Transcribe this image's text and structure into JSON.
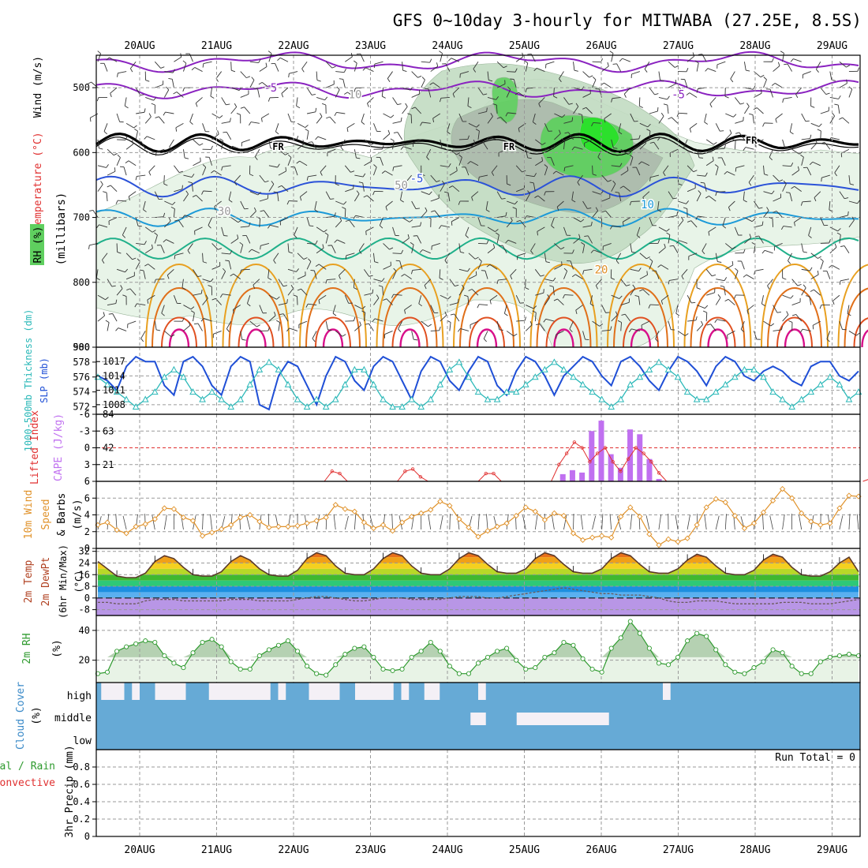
{
  "title": "GFS 0~10day 3-hourly for MITWABA (27.25E, 8.5S)",
  "dates": [
    "20AUG",
    "21AUG",
    "22AUG",
    "23AUG",
    "24AUG",
    "25AUG",
    "26AUG",
    "27AUG",
    "28AUG",
    "29AUG"
  ],
  "colors": {
    "rh_light": "#e6f3e6",
    "rh_mid": "#c2dcc2",
    "rh_gray": "#a9b7a9",
    "rh_green": "#5fcf5f",
    "rh_bright": "#2ce02c",
    "slp": "#1f4fd6",
    "thick": "#2ab8b8",
    "cape": "#c070f0",
    "li": "#e03030",
    "wind": "#e0922a",
    "rh2m": "#2e9a2e",
    "cloud": "#66aad6",
    "cloud_clear": "#f4f0f6"
  },
  "chart_data": [
    {
      "type": "contour",
      "panel": "upper-air",
      "ylabels": {
        "wind": "Wind (m/s)",
        "temp": "Temperature (°C)",
        "rh": "RH (%)",
        "pressure": "(millibars)"
      },
      "pressure_ticks": [
        500,
        600,
        700,
        800,
        900
      ],
      "ylim": [
        450,
        900
      ],
      "contour_labels": [
        {
          "text": "-5",
          "day": 1.7,
          "p": 500
        },
        {
          "text": "-5",
          "day": 7.0,
          "p": 510
        },
        {
          "text": "FR",
          "day": 1.8,
          "p": 590
        },
        {
          "text": "FR",
          "day": 4.8,
          "p": 590
        },
        {
          "text": "FR",
          "day": 7.95,
          "p": 580
        },
        {
          "text": "-5",
          "day": 3.6,
          "p": 640
        },
        {
          "text": "10",
          "day": 6.6,
          "p": 680
        },
        {
          "text": "20",
          "day": 6.0,
          "p": 780
        },
        {
          "text": "30",
          "day": 1.1,
          "p": 690
        },
        {
          "text": "10",
          "day": 2.8,
          "p": 510
        },
        {
          "text": "50",
          "day": 3.4,
          "p": 650
        }
      ]
    },
    {
      "type": "line",
      "panel": "slp-thickness",
      "ylabel_left": "1000-500mb Thickness (dm)",
      "ylabel_right": "SLP (mb)",
      "left_ticks": [
        572,
        574,
        576,
        578,
        580
      ],
      "right_ticks": [
        1008,
        1011,
        1014,
        1017
      ],
      "series": [
        {
          "name": "SLP",
          "values": [
            1014,
            1013,
            1011,
            1016,
            1018,
            1017,
            1017,
            1012,
            1010,
            1017,
            1018,
            1016,
            1012,
            1010,
            1016,
            1018,
            1017,
            1008,
            1007,
            1014,
            1017,
            1016,
            1012,
            1008,
            1014,
            1018,
            1017,
            1013,
            1011,
            1016,
            1018,
            1017,
            1013,
            1009,
            1015,
            1018,
            1017,
            1013,
            1011,
            1015,
            1018,
            1017,
            1012,
            1010,
            1015,
            1018,
            1017,
            1014,
            1010,
            1014,
            1016,
            1018,
            1017,
            1014,
            1012,
            1017,
            1018,
            1016,
            1013,
            1011,
            1015,
            1018,
            1017,
            1015,
            1012,
            1016,
            1018,
            1017,
            1014,
            1013,
            1015,
            1016,
            1015,
            1013,
            1012,
            1016,
            1017,
            1017,
            1014,
            1013,
            1015
          ]
        },
        {
          "name": "Thickness",
          "values": [
            576,
            575,
            574,
            573,
            572,
            573,
            574,
            576,
            577,
            576,
            574,
            573,
            574,
            573,
            572,
            573,
            575,
            577,
            578,
            577,
            575,
            573,
            572,
            573,
            572,
            573,
            575,
            577,
            577,
            575,
            573,
            572,
            572,
            573,
            572,
            573,
            575,
            577,
            578,
            576,
            574,
            573,
            573,
            574,
            574,
            575,
            576,
            577,
            578,
            577,
            576,
            575,
            574,
            573,
            572,
            573,
            575,
            576,
            577,
            578,
            577,
            576,
            574,
            573,
            573,
            574,
            575,
            576,
            577,
            577,
            576,
            574,
            573,
            572,
            573,
            574,
            575,
            576,
            575,
            573,
            574
          ]
        }
      ]
    },
    {
      "type": "bar",
      "panel": "cape-li",
      "ylabel_left": "Lifted Index",
      "ylabel_right": "CAPE (J/kg)",
      "left_ticks": [
        -6,
        -3,
        0,
        3,
        6
      ],
      "right_ticks": [
        21,
        42,
        63,
        84
      ],
      "cape": [
        {
          "day": 5.5,
          "value": 9
        },
        {
          "day": 5.625,
          "value": 14
        },
        {
          "day": 5.75,
          "value": 11
        },
        {
          "day": 5.875,
          "value": 63
        },
        {
          "day": 6.0,
          "value": 76
        },
        {
          "day": 6.125,
          "value": 34
        },
        {
          "day": 6.25,
          "value": 17
        },
        {
          "day": 6.375,
          "value": 65
        },
        {
          "day": 6.5,
          "value": 59
        },
        {
          "day": 6.625,
          "value": 28
        },
        {
          "day": 6.75,
          "value": 3
        }
      ],
      "li": [
        {
          "day": 2.4,
          "value": 6
        },
        {
          "day": 2.5,
          "value": 4.2
        },
        {
          "day": 2.6,
          "value": 4.6
        },
        {
          "day": 2.7,
          "value": 6
        },
        {
          "day": 3.35,
          "value": 6
        },
        {
          "day": 3.45,
          "value": 4.2
        },
        {
          "day": 3.55,
          "value": 3.8
        },
        {
          "day": 3.65,
          "value": 5.2
        },
        {
          "day": 3.75,
          "value": 6
        },
        {
          "day": 4.4,
          "value": 6
        },
        {
          "day": 4.5,
          "value": 4.6
        },
        {
          "day": 4.6,
          "value": 4.6
        },
        {
          "day": 4.7,
          "value": 6
        },
        {
          "day": 5.35,
          "value": 6
        },
        {
          "day": 5.45,
          "value": 3
        },
        {
          "day": 5.55,
          "value": 1
        },
        {
          "day": 5.65,
          "value": -1
        },
        {
          "day": 5.75,
          "value": 0
        },
        {
          "day": 5.85,
          "value": 2.5
        },
        {
          "day": 5.95,
          "value": 1
        },
        {
          "day": 6.05,
          "value": 0
        },
        {
          "day": 6.15,
          "value": 2.5
        },
        {
          "day": 6.25,
          "value": 4.2
        },
        {
          "day": 6.35,
          "value": 2
        },
        {
          "day": 6.45,
          "value": 0
        },
        {
          "day": 6.55,
          "value": 1
        },
        {
          "day": 6.65,
          "value": 2.5
        },
        {
          "day": 6.75,
          "value": 4.5
        },
        {
          "day": 6.85,
          "value": 6
        },
        {
          "day": 9.4,
          "value": 6
        },
        {
          "day": 9.5,
          "value": 5.5
        },
        {
          "day": 9.6,
          "value": 6
        }
      ]
    },
    {
      "type": "line",
      "panel": "wind10m",
      "ylabel": "10m Wind Speed & Barbs (m/s)",
      "ticks": [
        0,
        2,
        4,
        6
      ],
      "series": [
        {
          "name": "10m wind",
          "values": [
            2.8,
            3.1,
            2.2,
            1.8,
            2.6,
            2.9,
            3.5,
            4.8,
            4.7,
            3.7,
            3.3,
            1.5,
            1.9,
            2.3,
            2.8,
            3.7,
            4.0,
            3.2,
            2.5,
            2.6,
            2.6,
            2.7,
            3.0,
            3.3,
            3.7,
            5.2,
            4.7,
            4.4,
            3.1,
            2.4,
            2.8,
            2.1,
            3.1,
            3.8,
            4.2,
            4.6,
            5.6,
            5.1,
            3.5,
            2.5,
            1.4,
            2.1,
            2.6,
            3.0,
            3.9,
            4.9,
            4.4,
            3.4,
            4.2,
            3.9,
            1.8,
            1.0,
            1.3,
            1.5,
            1.3,
            3.8,
            4.9,
            3.8,
            1.7,
            0.4,
            1.1,
            0.8,
            1.2,
            2.8,
            4.9,
            5.9,
            5.5,
            3.9,
            2.4,
            3.0,
            4.3,
            5.7,
            7.1,
            6.0,
            4.2,
            3.2,
            2.8,
            3.0,
            4.8,
            6.3,
            6.2
          ]
        }
      ]
    },
    {
      "type": "area",
      "panel": "temp2m",
      "ylabel": "2m Temp 2m DewPt (6hr Min/Max) (°C)",
      "ticks": [
        -8,
        0,
        8,
        16,
        24,
        32
      ],
      "series": [
        {
          "name": "2m Temp",
          "values": [
            25,
            20,
            15,
            14,
            14,
            17,
            25,
            29,
            27,
            21,
            16,
            15,
            15,
            18,
            25,
            29,
            26,
            20,
            16,
            15,
            15,
            19,
            27,
            31,
            29,
            22,
            17,
            16,
            16,
            20,
            27,
            31,
            29,
            22,
            17,
            16,
            16,
            20,
            27,
            31,
            29,
            23,
            18,
            17,
            17,
            20,
            27,
            31,
            29,
            23,
            18,
            17,
            17,
            20,
            27,
            31,
            29,
            23,
            18,
            17,
            17,
            20,
            26,
            30,
            28,
            22,
            17,
            16,
            16,
            19,
            26,
            30,
            28,
            21,
            16,
            15,
            15,
            18,
            24,
            28,
            18
          ]
        },
        {
          "name": "2m DewPt",
          "values": [
            -3,
            -3,
            -4,
            -4,
            -4,
            -2,
            -1,
            -1,
            -1,
            -2,
            -2,
            -2,
            -2,
            -2,
            -1,
            -1,
            -1,
            -2,
            -2,
            -2,
            -2,
            -1,
            0,
            1,
            1,
            0,
            -1,
            -2,
            -2,
            -1,
            0,
            0,
            0,
            -1,
            -1,
            -1,
            -1,
            0,
            1,
            1,
            1,
            0,
            0,
            1,
            2,
            3,
            4,
            5,
            6,
            7,
            6,
            5,
            4,
            3,
            3,
            2,
            2,
            2,
            1,
            0,
            -2,
            -3,
            -3,
            -2,
            -2,
            -2,
            -3,
            -4,
            -4,
            -4,
            -4,
            -4,
            -3,
            -3,
            -3,
            -4,
            -4,
            -4,
            -3,
            -2,
            -1
          ]
        }
      ]
    },
    {
      "type": "area",
      "panel": "rh2m",
      "ylabel": "2m RH (%)",
      "ticks": [
        20,
        40
      ],
      "series": [
        {
          "name": "2m RH",
          "values": [
            11,
            12,
            26,
            29,
            31,
            33,
            32,
            23,
            18,
            15,
            25,
            32,
            34,
            29,
            19,
            14,
            14,
            23,
            27,
            30,
            33,
            26,
            16,
            11,
            10,
            17,
            24,
            28,
            29,
            22,
            14,
            13,
            14,
            22,
            26,
            32,
            26,
            16,
            11,
            11,
            18,
            22,
            26,
            28,
            20,
            14,
            15,
            22,
            25,
            32,
            30,
            21,
            14,
            12,
            28,
            35,
            46,
            38,
            28,
            18,
            17,
            22,
            33,
            38,
            36,
            27,
            17,
            12,
            11,
            15,
            19,
            27,
            25,
            16,
            11,
            11,
            19,
            22,
            23,
            24,
            23
          ]
        }
      ]
    },
    {
      "type": "bar",
      "panel": "cloud",
      "ylabel": "Cloud Cover (%)",
      "levels": [
        "high",
        "middle",
        "low"
      ],
      "high_clear_days": [
        [
          0.0,
          0.3
        ],
        [
          0.4,
          0.5
        ],
        [
          0.7,
          1.1
        ],
        [
          1.4,
          2.2
        ],
        [
          2.3,
          2.4
        ],
        [
          2.7,
          3.1
        ],
        [
          3.3,
          3.8
        ],
        [
          3.9,
          4.0
        ],
        [
          4.2,
          4.4
        ],
        [
          4.9,
          5.0
        ],
        [
          7.3,
          7.4
        ]
      ],
      "middle_clear_days": [
        [
          4.8,
          5.0
        ],
        [
          5.4,
          6.6
        ]
      ]
    },
    {
      "type": "line",
      "panel": "precip",
      "ylabel": "3hr Precip (mm)",
      "ylabel_series": "Total / Rain / Convective",
      "run_total_label": "Run Total = 0",
      "ticks": [
        0,
        0.2,
        0.4,
        0.6,
        0.8
      ],
      "values": []
    }
  ]
}
